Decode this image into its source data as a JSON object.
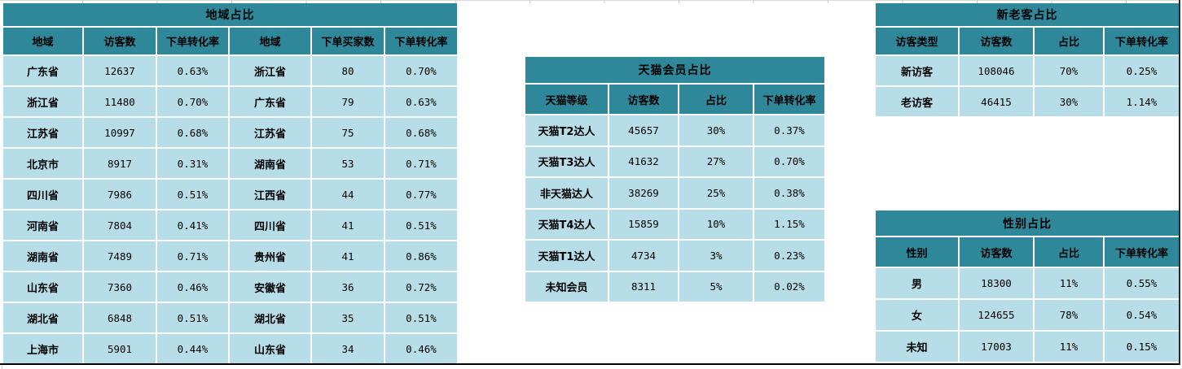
{
  "colors": {
    "header_teal": "#2f889a",
    "row_light_blue": "#b7dee8",
    "page_break_line": "#000000",
    "grid_tick": "#c9c9c9"
  },
  "tables": {
    "region": {
      "title": "地域占比",
      "headers": [
        "地域",
        "访客数",
        "下单转化率",
        "地域",
        "下单买家数",
        "下单转化率"
      ],
      "rows": [
        [
          "广东省",
          "12637",
          "0.63%",
          "浙江省",
          "80",
          "0.70%"
        ],
        [
          "浙江省",
          "11480",
          "0.70%",
          "广东省",
          "79",
          "0.63%"
        ],
        [
          "江苏省",
          "10997",
          "0.68%",
          "江苏省",
          "75",
          "0.68%"
        ],
        [
          "北京市",
          "8917",
          "0.31%",
          "湖南省",
          "53",
          "0.71%"
        ],
        [
          "四川省",
          "7986",
          "0.51%",
          "江西省",
          "44",
          "0.77%"
        ],
        [
          "河南省",
          "7804",
          "0.41%",
          "四川省",
          "41",
          "0.51%"
        ],
        [
          "湖南省",
          "7489",
          "0.71%",
          "贵州省",
          "41",
          "0.86%"
        ],
        [
          "山东省",
          "7360",
          "0.46%",
          "安徽省",
          "36",
          "0.72%"
        ],
        [
          "湖北省",
          "6848",
          "0.51%",
          "湖北省",
          "35",
          "0.51%"
        ],
        [
          "上海市",
          "5901",
          "0.44%",
          "山东省",
          "34",
          "0.46%"
        ]
      ]
    },
    "tmall": {
      "title": "天猫会员占比",
      "headers": [
        "天猫等级",
        "访客数",
        "占比",
        "下单转化率"
      ],
      "rows": [
        [
          "天猫T2达人",
          "45657",
          "30%",
          "0.37%"
        ],
        [
          "天猫T3达人",
          "41632",
          "27%",
          "0.70%"
        ],
        [
          "非天猫达人",
          "38269",
          "25%",
          "0.38%"
        ],
        [
          "天猫T4达人",
          "15859",
          "10%",
          "1.15%"
        ],
        [
          "天猫T1达人",
          "4734",
          "3%",
          "0.23%"
        ],
        [
          "未知会员",
          "8311",
          "5%",
          "0.02%"
        ]
      ]
    },
    "visitor_type": {
      "title": "新老客占比",
      "headers": [
        "访客类型",
        "访客数",
        "占比",
        "下单转化率"
      ],
      "rows": [
        [
          "新访客",
          "108046",
          "70%",
          "0.25%"
        ],
        [
          "老访客",
          "46415",
          "30%",
          "1.14%"
        ]
      ]
    },
    "gender": {
      "title": "性别占比",
      "headers": [
        "性别",
        "访客数",
        "占比",
        "下单转化率"
      ],
      "rows": [
        [
          "男",
          "18300",
          "11%",
          "0.55%"
        ],
        [
          "女",
          "124655",
          "78%",
          "0.54%"
        ],
        [
          "未知",
          "17003",
          "11%",
          "0.15%"
        ]
      ]
    }
  }
}
